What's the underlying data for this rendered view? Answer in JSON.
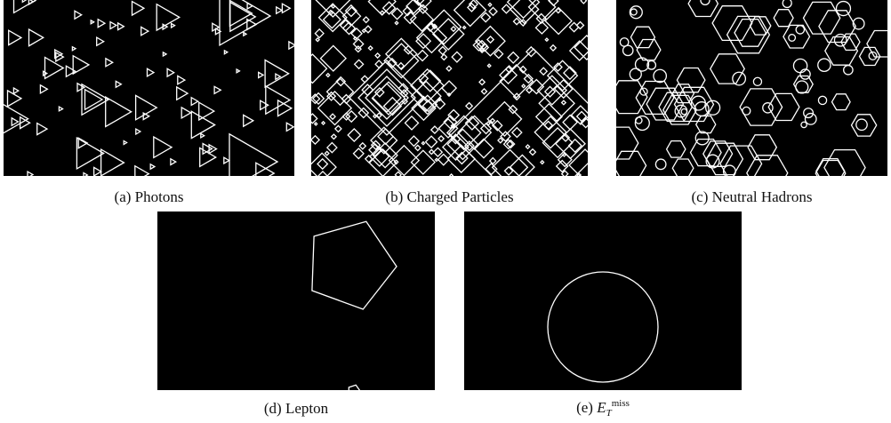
{
  "figure": {
    "background": "#000000",
    "stroke": "#ffffff",
    "panels": [
      {
        "id": "a",
        "caption": "(a) Photons",
        "shape": "triangle"
      },
      {
        "id": "b",
        "caption": "(b) Charged Particles",
        "shape": "diamond"
      },
      {
        "id": "c",
        "caption": "(c) Neutral Hadrons",
        "shape": "hexagon"
      },
      {
        "id": "d",
        "caption": "(d) Lepton",
        "shape": "pentagon"
      },
      {
        "id": "e",
        "caption_prefix": "(e) ",
        "caption_symbol": "E",
        "caption_sub": "T",
        "caption_sup": "miss",
        "shape": "circle"
      }
    ]
  }
}
